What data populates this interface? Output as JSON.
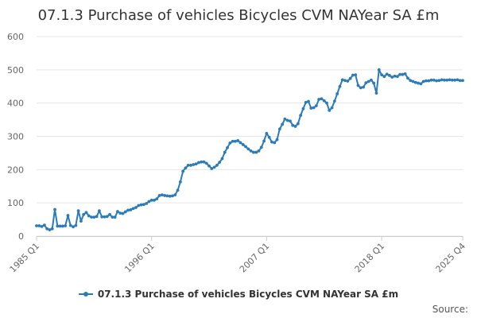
{
  "chart_data": {
    "type": "line",
    "title": "07.1.3 Purchase of vehicles Bicycles CVM NAYear SA £m",
    "xlabel": "",
    "ylabel": "",
    "ylim": [
      0,
      600
    ],
    "yticks": [
      0,
      100,
      200,
      300,
      400,
      500,
      600
    ],
    "x_tick_labels": [
      "1985 Q1",
      "1996 Q1",
      "2007 Q1",
      "2018 Q1",
      "2025 Q4"
    ],
    "x_tick_index": [
      0,
      44,
      88,
      132,
      163
    ],
    "series": [
      {
        "name": "07.1.3 Purchase of vehicles Bicycles CVM NAYear SA £m",
        "color": "#2b7bb9",
        "values": [
          31,
          31,
          29,
          33,
          22,
          19,
          22,
          80,
          30,
          30,
          30,
          31,
          62,
          32,
          28,
          32,
          76,
          45,
          65,
          71,
          61,
          57,
          57,
          59,
          76,
          58,
          58,
          59,
          65,
          57,
          57,
          74,
          69,
          68,
          73,
          78,
          79,
          83,
          86,
          92,
          94,
          95,
          98,
          104,
          108,
          108,
          112,
          122,
          124,
          122,
          121,
          120,
          121,
          124,
          138,
          163,
          195,
          205,
          213,
          213,
          215,
          217,
          221,
          223,
          223,
          219,
          211,
          203,
          207,
          213,
          222,
          233,
          252,
          266,
          280,
          285,
          285,
          287,
          281,
          275,
          269,
          262,
          256,
          252,
          252,
          256,
          267,
          286,
          309,
          297,
          283,
          281,
          290,
          322,
          336,
          352,
          348,
          346,
          333,
          330,
          338,
          363,
          383,
          402,
          405,
          385,
          386,
          392,
          411,
          413,
          407,
          400,
          378,
          386,
          406,
          428,
          450,
          470,
          468,
          466,
          474,
          484,
          485,
          453,
          446,
          448,
          461,
          465,
          469,
          460,
          430,
          500,
          485,
          480,
          487,
          483,
          478,
          481,
          480,
          486,
          486,
          488,
          475,
          468,
          465,
          462,
          460,
          458,
          465,
          467,
          467,
          469,
          469,
          467,
          468,
          470,
          469,
          469,
          470,
          469,
          469,
          470,
          468,
          468
        ]
      }
    ]
  },
  "legend": {
    "label": "07.1.3 Purchase of vehicles Bicycles CVM NAYear SA £m"
  },
  "source": {
    "label": "Source:"
  }
}
